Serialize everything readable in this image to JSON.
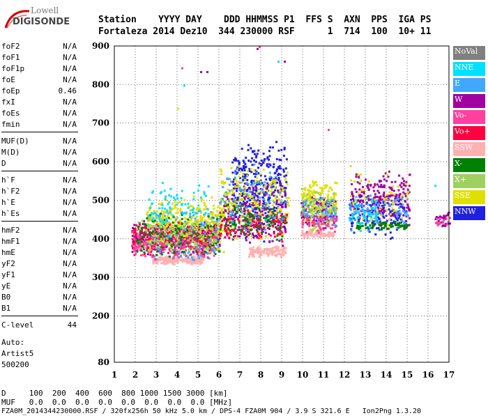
{
  "logo": {
    "line1": "Lowell",
    "line2": "DIGISONDE"
  },
  "header": {
    "row1": "Station    YYYY DAY    DDD HHMMSS P1  FFS S  AXN  PPS  IGA PS",
    "row2": "Fortaleza 2014 Dez10  344 230000 RSF      1  714  100  10+ 11"
  },
  "params": [
    {
      "name": "foF2",
      "value": "N/A"
    },
    {
      "name": "foF1",
      "value": "N/A"
    },
    {
      "name": "foF1p",
      "value": "N/A"
    },
    {
      "name": "foE",
      "value": "N/A"
    },
    {
      "name": "foEp",
      "value": "0.46"
    },
    {
      "name": "fxI",
      "value": "N/A"
    },
    {
      "name": "foEs",
      "value": "N/A"
    },
    {
      "name": "fmin",
      "value": "N/A"
    },
    {
      "name": "MUF(D)",
      "value": "N/A"
    },
    {
      "name": "M(D)",
      "value": "N/A"
    },
    {
      "name": "D",
      "value": "N/A"
    },
    {
      "name": "h`F",
      "value": "N/A"
    },
    {
      "name": "h`F2",
      "value": "N/A"
    },
    {
      "name": "h`E",
      "value": "N/A"
    },
    {
      "name": "h`Es",
      "value": "N/A"
    },
    {
      "name": "hmF2",
      "value": "N/A"
    },
    {
      "name": "hmF1",
      "value": "N/A"
    },
    {
      "name": "hmE",
      "value": "N/A"
    },
    {
      "name": "yF2",
      "value": "N/A"
    },
    {
      "name": "yF1",
      "value": "N/A"
    },
    {
      "name": "yE",
      "value": "N/A"
    },
    {
      "name": "B0",
      "value": "N/A"
    },
    {
      "name": "B1",
      "value": "N/A"
    },
    {
      "name": "C-level",
      "value": "44"
    }
  ],
  "auto": {
    "line1": "Auto:",
    "line2": "Artist5",
    "line3": "500200"
  },
  "legend": [
    {
      "label": "NoVal",
      "color": "#808080"
    },
    {
      "label": "NNE",
      "color": "#00e0ff"
    },
    {
      "label": "E",
      "color": "#40a8ff"
    },
    {
      "label": "W",
      "color": "#a000a0"
    },
    {
      "label": "Vo-",
      "color": "#ff40a0"
    },
    {
      "label": "Vo+",
      "color": "#ff0040"
    },
    {
      "label": "SSW",
      "color": "#ffb0b0"
    },
    {
      "label": "X-",
      "color": "#008000"
    },
    {
      "label": "X+",
      "color": "#a0d060"
    },
    {
      "label": "SSE",
      "color": "#e0e000"
    },
    {
      "label": "NNW",
      "color": "#2020e0"
    }
  ],
  "footer": {
    "line1": "D     100  200  400  600  800 1000 1500 3000 [km]",
    "line2": "MUF   0.0  0.0  0.0  0.0  0.0  0.0  0.0  0.0 [MHz]",
    "line3": "FZA0M_2014344230000.RSF / 320fx256h 50 kHz 5.0 km / DPS-4 FZA0M 904 / 3.9 S 321.6 E   Ion2Png 1.3.20"
  },
  "chart_data": {
    "type": "scatter",
    "title": "",
    "xlabel": "",
    "ylabel": "",
    "xlim": [
      1,
      17
    ],
    "ylim": [
      80,
      900
    ],
    "x_ticks": [
      1,
      2,
      3,
      4,
      5,
      6,
      7,
      8,
      9,
      10,
      11,
      12,
      13,
      14,
      15,
      16,
      17
    ],
    "y_ticks": [
      80,
      200,
      300,
      400,
      500,
      600,
      700,
      800,
      900
    ],
    "grid": true,
    "legend_position": "right",
    "clusters": [
      {
        "name": "SSW",
        "color": "#ffb0b0",
        "x": [
          2.8,
          5.2
        ],
        "y": [
          335,
          360
        ],
        "n": 220
      },
      {
        "name": "SSW",
        "color": "#ffb0b0",
        "x": [
          7.4,
          9.2
        ],
        "y": [
          355,
          385
        ],
        "n": 120
      },
      {
        "name": "SSW",
        "color": "#ffb0b0",
        "x": [
          9.9,
          11.5
        ],
        "y": [
          405,
          425
        ],
        "n": 90
      },
      {
        "name": "W",
        "color": "#a000a0",
        "x": [
          1.8,
          6.0
        ],
        "y": [
          360,
          450
        ],
        "n": 420
      },
      {
        "name": "E",
        "color": "#40a8ff",
        "x": [
          2.6,
          6.0
        ],
        "y": [
          340,
          480
        ],
        "n": 320
      },
      {
        "name": "SSE",
        "color": "#e0e000",
        "x": [
          2.5,
          6.2
        ],
        "y": [
          360,
          520
        ],
        "n": 350
      },
      {
        "name": "Vo+",
        "color": "#ff0040",
        "x": [
          1.8,
          5.8
        ],
        "y": [
          350,
          450
        ],
        "n": 200
      },
      {
        "name": "Vo-",
        "color": "#ff40a0",
        "x": [
          1.8,
          5.8
        ],
        "y": [
          340,
          440
        ],
        "n": 160
      },
      {
        "name": "X-",
        "color": "#008000",
        "x": [
          2.0,
          6.0
        ],
        "y": [
          350,
          470
        ],
        "n": 120
      },
      {
        "name": "X+",
        "color": "#a0d060",
        "x": [
          2.0,
          6.0
        ],
        "y": [
          360,
          480
        ],
        "n": 120
      },
      {
        "name": "NNE",
        "color": "#00e0ff",
        "x": [
          2.5,
          5.5
        ],
        "y": [
          420,
          560
        ],
        "n": 80
      },
      {
        "name": "NNW",
        "color": "#2020e0",
        "x": [
          6.6,
          9.2
        ],
        "y": [
          390,
          660
        ],
        "n": 420
      },
      {
        "name": "W",
        "color": "#a000a0",
        "x": [
          6.2,
          9.2
        ],
        "y": [
          380,
          560
        ],
        "n": 220
      },
      {
        "name": "SSE",
        "color": "#e0e000",
        "x": [
          6.0,
          9.3
        ],
        "y": [
          390,
          600
        ],
        "n": 240
      },
      {
        "name": "Vo+",
        "color": "#ff0040",
        "x": [
          6.0,
          9.2
        ],
        "y": [
          390,
          480
        ],
        "n": 120
      },
      {
        "name": "X-",
        "color": "#008000",
        "x": [
          6.0,
          9.2
        ],
        "y": [
          390,
          500
        ],
        "n": 90
      },
      {
        "name": "E",
        "color": "#40a8ff",
        "x": [
          6.0,
          9.2
        ],
        "y": [
          400,
          620
        ],
        "n": 90
      },
      {
        "name": "SSE",
        "color": "#e0e000",
        "x": [
          9.9,
          11.6
        ],
        "y": [
          420,
          560
        ],
        "n": 260
      },
      {
        "name": "W",
        "color": "#a000a0",
        "x": [
          9.9,
          11.6
        ],
        "y": [
          420,
          520
        ],
        "n": 90
      },
      {
        "name": "X+",
        "color": "#a0d060",
        "x": [
          9.9,
          11.6
        ],
        "y": [
          420,
          540
        ],
        "n": 90
      },
      {
        "name": "E",
        "color": "#40a8ff",
        "x": [
          9.9,
          11.6
        ],
        "y": [
          430,
          520
        ],
        "n": 60
      },
      {
        "name": "Vo-",
        "color": "#ff40a0",
        "x": [
          9.9,
          11.6
        ],
        "y": [
          415,
          470
        ],
        "n": 60
      },
      {
        "name": "W",
        "color": "#a000a0",
        "x": [
          12.3,
          15.1
        ],
        "y": [
          430,
          580
        ],
        "n": 260
      },
      {
        "name": "NNW",
        "color": "#2020e0",
        "x": [
          12.2,
          15.0
        ],
        "y": [
          400,
          520
        ],
        "n": 120
      },
      {
        "name": "E",
        "color": "#40a8ff",
        "x": [
          12.2,
          15.0
        ],
        "y": [
          420,
          520
        ],
        "n": 90
      },
      {
        "name": "X-",
        "color": "#008000",
        "x": [
          12.5,
          15.0
        ],
        "y": [
          425,
          450
        ],
        "n": 70
      },
      {
        "name": "NNE",
        "color": "#00e0ff",
        "x": [
          12.2,
          13.5
        ],
        "y": [
          420,
          520
        ],
        "n": 50
      },
      {
        "name": "SSE",
        "color": "#e0e000",
        "x": [
          12.2,
          15.0
        ],
        "y": [
          430,
          600
        ],
        "n": 50
      },
      {
        "name": "W",
        "color": "#a000a0",
        "x": [
          16.3,
          17.0
        ],
        "y": [
          430,
          490
        ],
        "n": 25
      },
      {
        "name": "Vo-",
        "color": "#ff40a0",
        "x": [
          16.2,
          17.0
        ],
        "y": [
          430,
          460
        ],
        "n": 15
      }
    ],
    "points": [
      {
        "name": "Vo-",
        "color": "#ff40a0",
        "x": 4.2,
        "y": 845
      },
      {
        "name": "NNE",
        "color": "#00e0ff",
        "x": 4.3,
        "y": 800
      },
      {
        "name": "W",
        "color": "#a000a0",
        "x": 5.1,
        "y": 835
      },
      {
        "name": "W",
        "color": "#a000a0",
        "x": 5.4,
        "y": 835
      },
      {
        "name": "W",
        "color": "#a000a0",
        "x": 7.8,
        "y": 895
      },
      {
        "name": "Vo-",
        "color": "#ff40a0",
        "x": 7.9,
        "y": 900
      },
      {
        "name": "NNE",
        "color": "#00e0ff",
        "x": 8.8,
        "y": 862
      },
      {
        "name": "W",
        "color": "#a000a0",
        "x": 9.1,
        "y": 862
      },
      {
        "name": "SSE",
        "color": "#e0e000",
        "x": 4.0,
        "y": 740
      },
      {
        "name": "Vo-",
        "color": "#ff40a0",
        "x": 11.2,
        "y": 685
      },
      {
        "name": "NNE",
        "color": "#00e0ff",
        "x": 16.3,
        "y": 540
      }
    ]
  }
}
